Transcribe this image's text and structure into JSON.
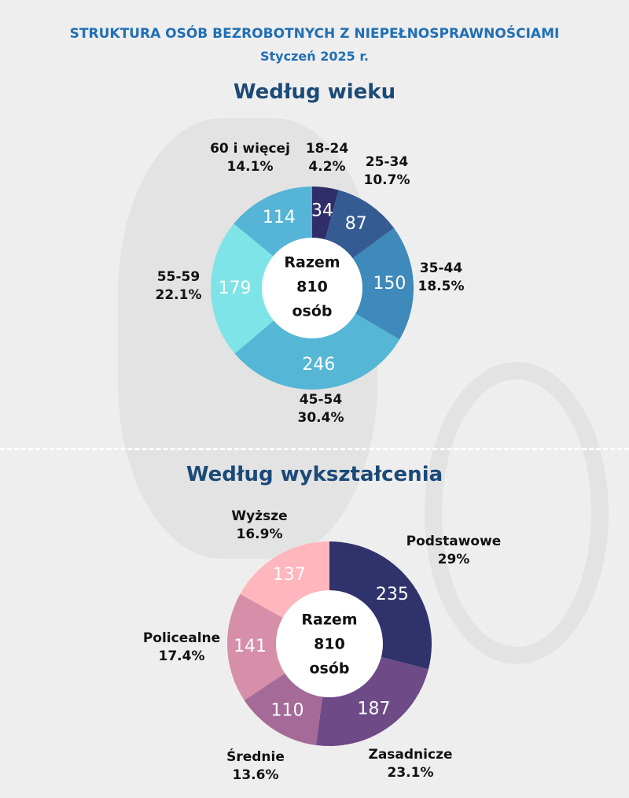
{
  "header": {
    "title": "STRUKTURA OSÓB BEZROBOTNYCH Z NIEPEŁNOSPRAWNOŚCIAMI",
    "subtitle": "Styczeń 2025 r."
  },
  "chart_data": [
    {
      "type": "pie",
      "title": "Według wieku",
      "center": {
        "line1": "Razem",
        "line2": "810",
        "line3": "osób"
      },
      "total": 810,
      "slices": [
        {
          "label": "18-24",
          "value": 34,
          "value_text": "34",
          "percent": "4.2%",
          "color": "#2f2e6a"
        },
        {
          "label": "25-34",
          "value": 87,
          "value_text": "87",
          "percent": "10.7%",
          "color": "#355b93"
        },
        {
          "label": "35-44",
          "value": 150,
          "value_text": "150",
          "percent": "18.5%",
          "color": "#3e8aba"
        },
        {
          "label": "45-54",
          "value": 246,
          "value_text": "246",
          "percent": "30.4%",
          "color": "#55b7d5"
        },
        {
          "label": "55-59",
          "value": 179,
          "value_text": "179",
          "percent": "22.1%",
          "color": "#7ee4e7"
        },
        {
          "label": "60 i więcej",
          "value": 114,
          "value_text": "114",
          "percent": "14.1%",
          "color": "#56b4d6"
        }
      ]
    },
    {
      "type": "pie",
      "title": "Według wykształcenia",
      "center": {
        "line1": "Razem",
        "line2": "810",
        "line3": "osób"
      },
      "total": 810,
      "slices": [
        {
          "label": "Podstawowe",
          "value": 235,
          "value_text": "235",
          "percent": "29%",
          "color": "#30336b"
        },
        {
          "label": "Zasadnicze",
          "value": 187,
          "value_text": "187",
          "percent": "23.1%",
          "color": "#6e4b87"
        },
        {
          "label": "Średnie",
          "value": 110,
          "value_text": "110",
          "percent": "13.6%",
          "color": "#a56a97"
        },
        {
          "label": "Policealne",
          "value": 141,
          "value_text": "141",
          "percent": "17.4%",
          "color": "#d68ea9"
        },
        {
          "label": "Wyższe",
          "value": 137,
          "value_text": "137",
          "percent": "16.9%",
          "color": "#ffb6bc"
        }
      ]
    }
  ]
}
